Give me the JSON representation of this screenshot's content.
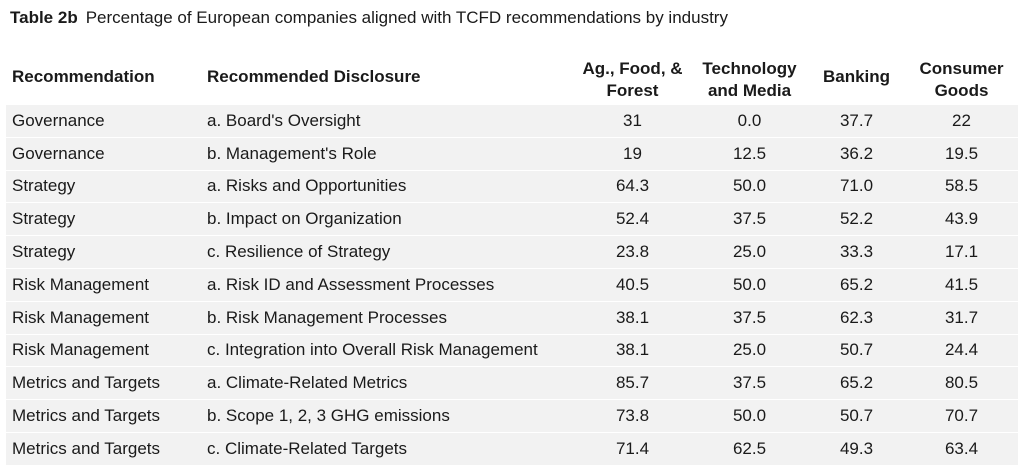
{
  "title": {
    "label": "Table 2b",
    "text": "Percentage of European companies aligned with TCFD recommendations by industry"
  },
  "chart_data": {
    "type": "table",
    "columns": [
      "Recommendation",
      "Recommended Disclosure",
      "Ag., Food, & Forest",
      "Technology and Media",
      "Banking",
      "Consumer Goods"
    ],
    "header_lines": {
      "ag": [
        "Ag., Food, &",
        "Forest"
      ],
      "tech": [
        "Technology",
        "and Media"
      ],
      "consumer": [
        "Consumer",
        "Goods"
      ]
    },
    "rows": [
      [
        "Governance",
        "a. Board's Oversight",
        "31",
        "0.0",
        "37.7",
        "22"
      ],
      [
        "Governance",
        "b. Management's Role",
        "19",
        "12.5",
        "36.2",
        "19.5"
      ],
      [
        "Strategy",
        "a. Risks and Opportunities",
        "64.3",
        "50.0",
        "71.0",
        "58.5"
      ],
      [
        "Strategy",
        "b. Impact on Organization",
        "52.4",
        "37.5",
        "52.2",
        "43.9"
      ],
      [
        "Strategy",
        "c. Resilience of Strategy",
        "23.8",
        "25.0",
        "33.3",
        "17.1"
      ],
      [
        "Risk Management",
        "a. Risk ID and Assessment Processes",
        "40.5",
        "50.0",
        "65.2",
        "41.5"
      ],
      [
        "Risk Management",
        "b. Risk Management Processes",
        "38.1",
        "37.5",
        "62.3",
        "31.7"
      ],
      [
        "Risk Management",
        "c. Integration into Overall Risk Management",
        "38.1",
        "25.0",
        "50.7",
        "24.4"
      ],
      [
        "Metrics and Targets",
        "a. Climate-Related Metrics",
        "85.7",
        "37.5",
        "65.2",
        "80.5"
      ],
      [
        "Metrics and Targets",
        "b. Scope 1, 2, 3 GHG emissions",
        "73.8",
        "50.0",
        "50.7",
        "70.7"
      ],
      [
        "Metrics and Targets",
        "c. Climate-Related Targets",
        "71.4",
        "62.5",
        "49.3",
        "63.4"
      ]
    ]
  }
}
